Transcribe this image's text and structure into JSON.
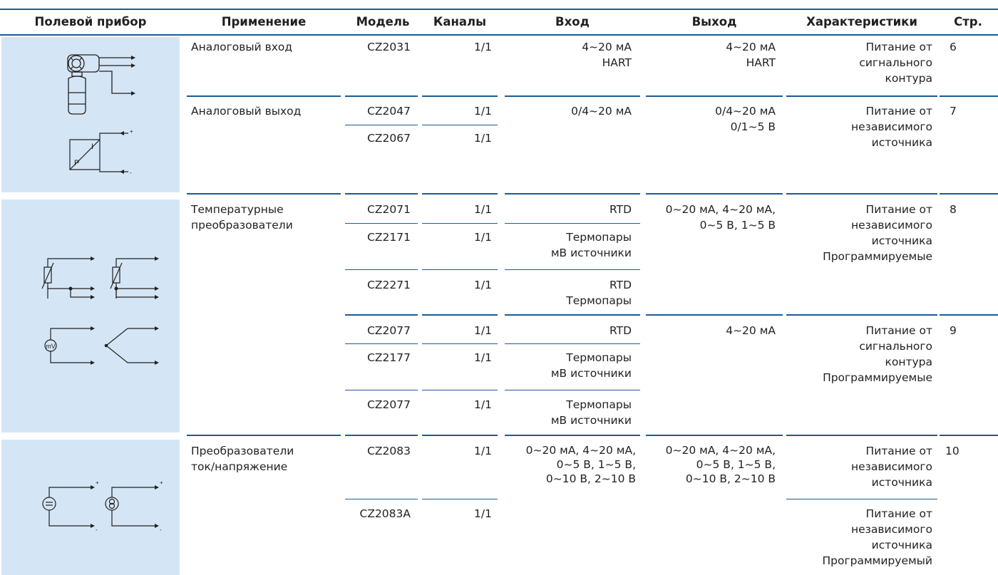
{
  "header": {
    "device": "Полевой прибор",
    "application": "Применение",
    "model": "Модель",
    "channels": "Каналы",
    "input": "Вход",
    "output": "Выход",
    "features": "Характеристики",
    "page": "Стр."
  },
  "diagram_labels": {
    "plus": "+",
    "minus": "-",
    "p": "P",
    "i": "I",
    "mv": "mV"
  },
  "colors": {
    "rule": "#1f5a93",
    "panel": "#d4e6f5",
    "text": "#231f20"
  },
  "groups": [
    {
      "application": "Аналоговый вход",
      "rows": [
        {
          "model": "CZ2031",
          "channels": "1/1",
          "input": [
            "4~20 мА",
            "HART"
          ],
          "output": [
            "4~20 мА",
            "HART"
          ],
          "features": [
            "Питание от",
            "сигнального",
            "контура"
          ],
          "page": "6"
        }
      ]
    },
    {
      "application": "Аналоговый выход",
      "rows": [
        {
          "model": "CZ2047",
          "channels": "1/1",
          "input": [
            "0/4~20 мА"
          ],
          "output": [
            "0/4~20 мА",
            "0/1~5 В"
          ],
          "features": [
            "Питание от",
            "независимого",
            "источника"
          ],
          "page": "7"
        },
        {
          "model": "CZ2067",
          "channels": "1/1"
        }
      ]
    },
    {
      "application": [
        "Температурные",
        "преобразователи"
      ],
      "rows": [
        {
          "model": "CZ2071",
          "channels": "1/1",
          "input": [
            "RTD"
          ],
          "output": [
            "0~20 мА, 4~20 мА,",
            "0~5 В, 1~5 В"
          ],
          "features": [
            "Питание от",
            "независимого",
            "источника",
            "Программируемые"
          ],
          "page": "8"
        },
        {
          "model": "CZ2171",
          "channels": "1/1",
          "input": [
            "Термопары",
            "мВ источники"
          ]
        },
        {
          "model": "CZ2271",
          "channels": "1/1",
          "input": [
            "RTD",
            "Термопары"
          ]
        },
        {
          "model": "CZ2077",
          "channels": "1/1",
          "input": [
            "RTD"
          ],
          "output": [
            "4~20 мА"
          ],
          "features": [
            "Питание от",
            "сигнального",
            "контура",
            "Программируемые"
          ],
          "page": "9"
        },
        {
          "model": "CZ2177",
          "channels": "1/1",
          "input": [
            "Термопары",
            "мВ источники"
          ]
        },
        {
          "model": "CZ2077",
          "channels": "1/1",
          "input": [
            "Термопары",
            "мВ источники"
          ]
        }
      ]
    },
    {
      "application": [
        "Преобразователи",
        "ток/напряжение"
      ],
      "rows": [
        {
          "model": "CZ2083",
          "channels": "1/1",
          "input": [
            "0~20 мА, 4~20 мА,",
            "0~5 В, 1~5 В,",
            "0~10 В, 2~10 В"
          ],
          "output": [
            "0~20 мА, 4~20 мА,",
            "0~5 В, 1~5 В,",
            "0~10 В, 2~10 В"
          ],
          "features": [
            "Питание от",
            "независимого",
            "источника"
          ],
          "page": "10"
        },
        {
          "model": "CZ2083A",
          "channels": "1/1",
          "features": [
            "Питание от",
            "независимого",
            "источника",
            "Программируемый"
          ]
        }
      ]
    }
  ]
}
